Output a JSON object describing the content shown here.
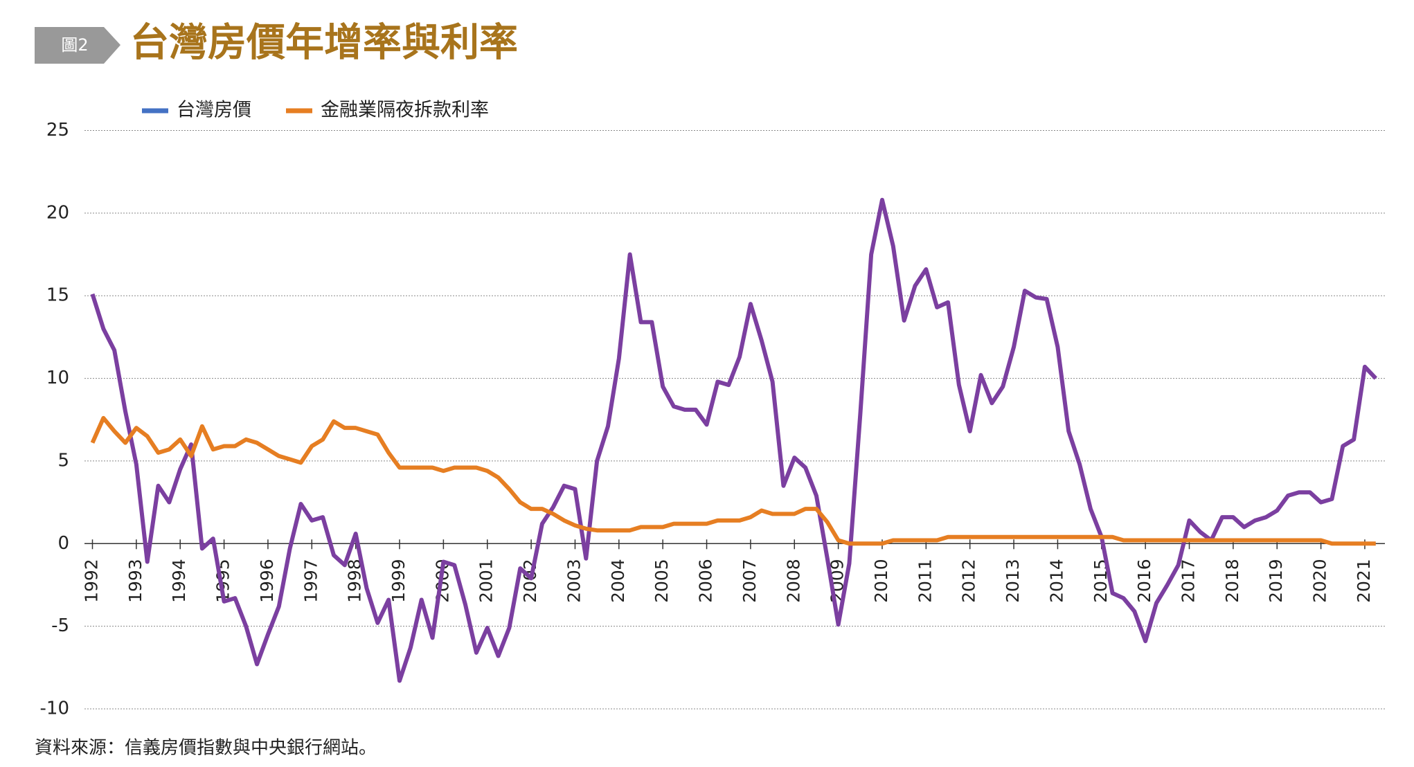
{
  "badge": "圖2",
  "chart_data": {
    "type": "line",
    "title": "台灣房價年增率與利率",
    "source": "資料來源：信義房價指數與中央銀行網站。",
    "categories": [
      "1992",
      null,
      null,
      null,
      "1993",
      null,
      null,
      null,
      "1994",
      null,
      null,
      null,
      "1995",
      null,
      null,
      null,
      "1996",
      null,
      null,
      null,
      "1997",
      null,
      null,
      null,
      "1998",
      null,
      null,
      null,
      "1999",
      null,
      null,
      null,
      "2000",
      null,
      null,
      null,
      "2001",
      null,
      null,
      null,
      "2002",
      null,
      null,
      null,
      "2003",
      null,
      null,
      null,
      "2004",
      null,
      null,
      null,
      "2005",
      null,
      null,
      null,
      "2006",
      null,
      null,
      null,
      "2007",
      null,
      null,
      null,
      "2008",
      null,
      null,
      null,
      "2009",
      null,
      null,
      null,
      "2010",
      null,
      null,
      null,
      "2011",
      null,
      null,
      null,
      "2012",
      null,
      null,
      null,
      "2013",
      null,
      null,
      null,
      "2014",
      null,
      null,
      null,
      "2015",
      null,
      null,
      null,
      "2016",
      null,
      null,
      null,
      "2017",
      null,
      null,
      null,
      "2018",
      null,
      null,
      null,
      "2019",
      null,
      null,
      null,
      "2020",
      null,
      null,
      null,
      "2021",
      null
    ],
    "series": [
      {
        "name": "台灣房價",
        "color": "#7b3fa0",
        "legend_color": "#4472c4",
        "values": [
          15.1,
          13.0,
          11.7,
          8.0,
          4.8,
          -1.1,
          3.5,
          2.5,
          4.5,
          6.0,
          -0.3,
          0.3,
          -3.5,
          -3.3,
          -5.0,
          -7.3,
          -5.5,
          -3.8,
          -0.3,
          2.4,
          1.4,
          1.6,
          -0.7,
          -1.3,
          0.6,
          -2.7,
          -4.8,
          -3.4,
          -8.3,
          -6.3,
          -3.4,
          -5.7,
          -1.1,
          -1.3,
          -3.7,
          -6.6,
          -5.1,
          -6.8,
          -5.1,
          -1.5,
          -2.1,
          1.2,
          2.2,
          3.5,
          3.3,
          -0.9,
          5.0,
          7.1,
          11.2,
          17.5,
          13.4,
          13.4,
          9.5,
          8.3,
          8.1,
          8.1,
          7.2,
          9.8,
          9.6,
          11.3,
          14.5,
          12.3,
          9.8,
          3.5,
          5.2,
          4.6,
          2.9,
          -0.9,
          -4.9,
          -1.2,
          7.8,
          17.5,
          20.8,
          18.0,
          13.5,
          15.6,
          16.6,
          14.3,
          14.6,
          9.6,
          6.8,
          10.2,
          8.5,
          9.5,
          11.9,
          15.3,
          14.9,
          14.8,
          11.9,
          6.8,
          4.8,
          2.1,
          0.4,
          -3.0,
          -3.3,
          -4.1,
          -5.9,
          -3.6,
          -2.5,
          -1.3,
          1.4,
          0.7,
          0.2,
          1.6,
          1.6,
          1.0,
          1.4,
          1.6,
          2.0,
          2.9,
          3.1,
          3.1,
          2.5,
          2.7,
          5.9,
          6.3,
          10.7,
          10.0
        ]
      },
      {
        "name": "金融業隔夜拆款利率",
        "color": "#e67e22",
        "legend_color": "#e67e22",
        "values": [
          6.1,
          7.6,
          6.8,
          6.1,
          7.0,
          6.5,
          5.5,
          5.7,
          6.3,
          5.3,
          7.1,
          5.7,
          5.9,
          5.9,
          6.3,
          6.1,
          5.7,
          5.3,
          5.1,
          4.9,
          5.9,
          6.3,
          7.4,
          7.0,
          7.0,
          6.8,
          6.6,
          5.5,
          4.6,
          4.6,
          4.6,
          4.6,
          4.4,
          4.6,
          4.6,
          4.6,
          4.4,
          4.0,
          3.3,
          2.5,
          2.1,
          2.1,
          1.8,
          1.4,
          1.1,
          0.9,
          0.8,
          0.8,
          0.8,
          0.8,
          1.0,
          1.0,
          1.0,
          1.2,
          1.2,
          1.2,
          1.2,
          1.4,
          1.4,
          1.4,
          1.6,
          2.0,
          1.8,
          1.8,
          1.8,
          2.1,
          2.1,
          1.3,
          0.2,
          0.0,
          0.0,
          0.0,
          0.0,
          0.2,
          0.2,
          0.2,
          0.2,
          0.2,
          0.4,
          0.4,
          0.4,
          0.4,
          0.4,
          0.4,
          0.4,
          0.4,
          0.4,
          0.4,
          0.4,
          0.4,
          0.4,
          0.4,
          0.4,
          0.4,
          0.2,
          0.2,
          0.2,
          0.2,
          0.2,
          0.2,
          0.2,
          0.2,
          0.2,
          0.2,
          0.2,
          0.2,
          0.2,
          0.2,
          0.2,
          0.2,
          0.2,
          0.2,
          0.2,
          0.0,
          0.0,
          0.0,
          0.0,
          0.0
        ]
      }
    ],
    "ylim": [
      -10,
      25
    ],
    "yticks": [
      -10,
      -5,
      0,
      5,
      10,
      15,
      20,
      25
    ],
    "grid": true
  }
}
